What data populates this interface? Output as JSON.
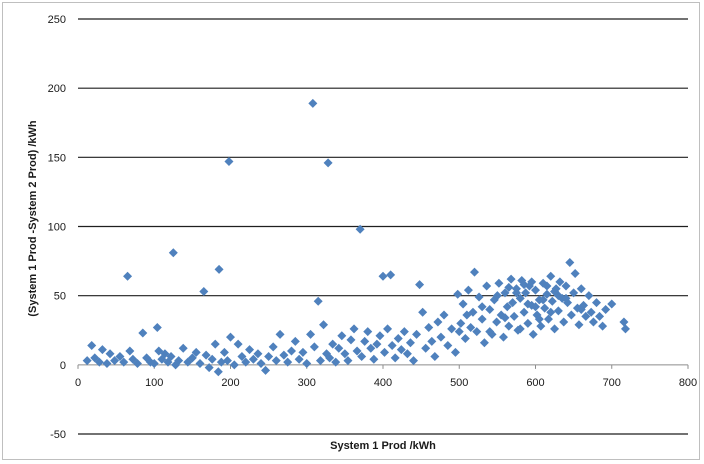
{
  "chart_data": {
    "type": "scatter",
    "title": "",
    "xlabel": "System 1 Prod /kWh",
    "ylabel": "(System 1 Prod -System 2 Prod) /kWh",
    "xlim": [
      0,
      800
    ],
    "ylim": [
      -50,
      250
    ],
    "xticks": [
      "0",
      "100",
      "200",
      "300",
      "400",
      "500",
      "600",
      "700",
      "800"
    ],
    "yticks": [
      "-50",
      "0",
      "50",
      "100",
      "150",
      "200",
      "250"
    ],
    "grid": "horizontal",
    "legend": "none",
    "marker": "diamond",
    "color": "#4f81bd",
    "series": [
      {
        "points": [
          [
            65,
            64
          ],
          [
            125,
            81
          ],
          [
            185,
            69
          ],
          [
            165,
            53
          ],
          [
            198,
            147
          ],
          [
            308,
            189
          ],
          [
            328,
            146
          ],
          [
            370,
            98
          ],
          [
            400,
            64
          ],
          [
            410,
            65
          ],
          [
            315,
            46
          ],
          [
            448,
            58
          ],
          [
            12,
            3
          ],
          [
            18,
            14
          ],
          [
            22,
            5
          ],
          [
            28,
            2
          ],
          [
            32,
            11
          ],
          [
            38,
            1
          ],
          [
            42,
            8
          ],
          [
            48,
            3
          ],
          [
            55,
            6
          ],
          [
            60,
            2
          ],
          [
            68,
            10
          ],
          [
            72,
            4
          ],
          [
            78,
            1
          ],
          [
            85,
            23
          ],
          [
            90,
            5
          ],
          [
            95,
            2
          ],
          [
            100,
            1
          ],
          [
            104,
            27
          ],
          [
            106,
            10
          ],
          [
            110,
            4
          ],
          [
            114,
            8
          ],
          [
            118,
            2
          ],
          [
            122,
            6
          ],
          [
            128,
            0
          ],
          [
            132,
            3
          ],
          [
            138,
            12
          ],
          [
            144,
            2
          ],
          [
            150,
            5
          ],
          [
            155,
            9
          ],
          [
            160,
            1
          ],
          [
            168,
            7
          ],
          [
            172,
            -2
          ],
          [
            176,
            4
          ],
          [
            180,
            15
          ],
          [
            184,
            -5
          ],
          [
            188,
            2
          ],
          [
            192,
            9
          ],
          [
            196,
            3
          ],
          [
            200,
            20
          ],
          [
            205,
            0
          ],
          [
            210,
            15
          ],
          [
            215,
            6
          ],
          [
            220,
            2
          ],
          [
            225,
            11
          ],
          [
            230,
            4
          ],
          [
            236,
            8
          ],
          [
            240,
            1
          ],
          [
            246,
            -4
          ],
          [
            250,
            6
          ],
          [
            256,
            13
          ],
          [
            260,
            3
          ],
          [
            265,
            22
          ],
          [
            270,
            7
          ],
          [
            275,
            2
          ],
          [
            280,
            10
          ],
          [
            285,
            17
          ],
          [
            290,
            4
          ],
          [
            295,
            9
          ],
          [
            300,
            1
          ],
          [
            305,
            22
          ],
          [
            310,
            13
          ],
          [
            318,
            3
          ],
          [
            322,
            29
          ],
          [
            326,
            8
          ],
          [
            330,
            5
          ],
          [
            334,
            15
          ],
          [
            338,
            2
          ],
          [
            342,
            12
          ],
          [
            346,
            21
          ],
          [
            350,
            8
          ],
          [
            354,
            3
          ],
          [
            358,
            18
          ],
          [
            362,
            26
          ],
          [
            366,
            10
          ],
          [
            372,
            6
          ],
          [
            376,
            17
          ],
          [
            380,
            24
          ],
          [
            384,
            12
          ],
          [
            388,
            4
          ],
          [
            392,
            15
          ],
          [
            396,
            21
          ],
          [
            402,
            9
          ],
          [
            406,
            26
          ],
          [
            412,
            14
          ],
          [
            416,
            5
          ],
          [
            420,
            19
          ],
          [
            424,
            11
          ],
          [
            428,
            24
          ],
          [
            432,
            8
          ],
          [
            436,
            16
          ],
          [
            440,
            3
          ],
          [
            444,
            22
          ],
          [
            452,
            38
          ],
          [
            456,
            12
          ],
          [
            460,
            27
          ],
          [
            464,
            17
          ],
          [
            468,
            6
          ],
          [
            472,
            31
          ],
          [
            476,
            20
          ],
          [
            480,
            36
          ],
          [
            485,
            14
          ],
          [
            490,
            26
          ],
          [
            495,
            9
          ],
          [
            498,
            51
          ],
          [
            502,
            30
          ],
          [
            505,
            44
          ],
          [
            508,
            19
          ],
          [
            512,
            54
          ],
          [
            515,
            27
          ],
          [
            518,
            38
          ],
          [
            520,
            67
          ],
          [
            523,
            24
          ],
          [
            526,
            49
          ],
          [
            530,
            33
          ],
          [
            533,
            16
          ],
          [
            536,
            57
          ],
          [
            540,
            40
          ],
          [
            543,
            22
          ],
          [
            546,
            47
          ],
          [
            549,
            31
          ],
          [
            552,
            59
          ],
          [
            555,
            36
          ],
          [
            558,
            20
          ],
          [
            560,
            52
          ],
          [
            563,
            42
          ],
          [
            565,
            28
          ],
          [
            568,
            62
          ],
          [
            570,
            45
          ],
          [
            572,
            35
          ],
          [
            575,
            55
          ],
          [
            577,
            25
          ],
          [
            580,
            48
          ],
          [
            582,
            61
          ],
          [
            585,
            38
          ],
          [
            587,
            52
          ],
          [
            590,
            30
          ],
          [
            592,
            57
          ],
          [
            595,
            43
          ],
          [
            597,
            22
          ],
          [
            600,
            54
          ],
          [
            602,
            36
          ],
          [
            605,
            47
          ],
          [
            607,
            28
          ],
          [
            610,
            59
          ],
          [
            612,
            41
          ],
          [
            615,
            51
          ],
          [
            617,
            33
          ],
          [
            620,
            64
          ],
          [
            622,
            46
          ],
          [
            625,
            26
          ],
          [
            627,
            55
          ],
          [
            630,
            39
          ],
          [
            632,
            60
          ],
          [
            635,
            48
          ],
          [
            637,
            31
          ],
          [
            640,
            57
          ],
          [
            642,
            45
          ],
          [
            645,
            74
          ],
          [
            647,
            36
          ],
          [
            650,
            52
          ],
          [
            652,
            66
          ],
          [
            655,
            41
          ],
          [
            657,
            29
          ],
          [
            660,
            55
          ],
          [
            663,
            43
          ],
          [
            666,
            35
          ],
          [
            670,
            50
          ],
          [
            673,
            38
          ],
          [
            676,
            31
          ],
          [
            680,
            45
          ],
          [
            684,
            35
          ],
          [
            688,
            28
          ],
          [
            692,
            40
          ],
          [
            700,
            44
          ],
          [
            716,
            31
          ],
          [
            718,
            26
          ],
          [
            540,
            24
          ],
          [
            560,
            34
          ],
          [
            580,
            26
          ],
          [
            600,
            42
          ],
          [
            620,
            38
          ],
          [
            575,
            52
          ],
          [
            595,
            60
          ],
          [
            610,
            47
          ],
          [
            625,
            53
          ],
          [
            590,
            44
          ],
          [
            605,
            33
          ],
          [
            565,
            56
          ],
          [
            550,
            50
          ],
          [
            585,
            58
          ],
          [
            615,
            57
          ],
          [
            630,
            50
          ],
          [
            640,
            48
          ],
          [
            660,
            40
          ],
          [
            530,
            42
          ],
          [
            510,
            36
          ],
          [
            500,
            24
          ]
        ]
      }
    ]
  }
}
